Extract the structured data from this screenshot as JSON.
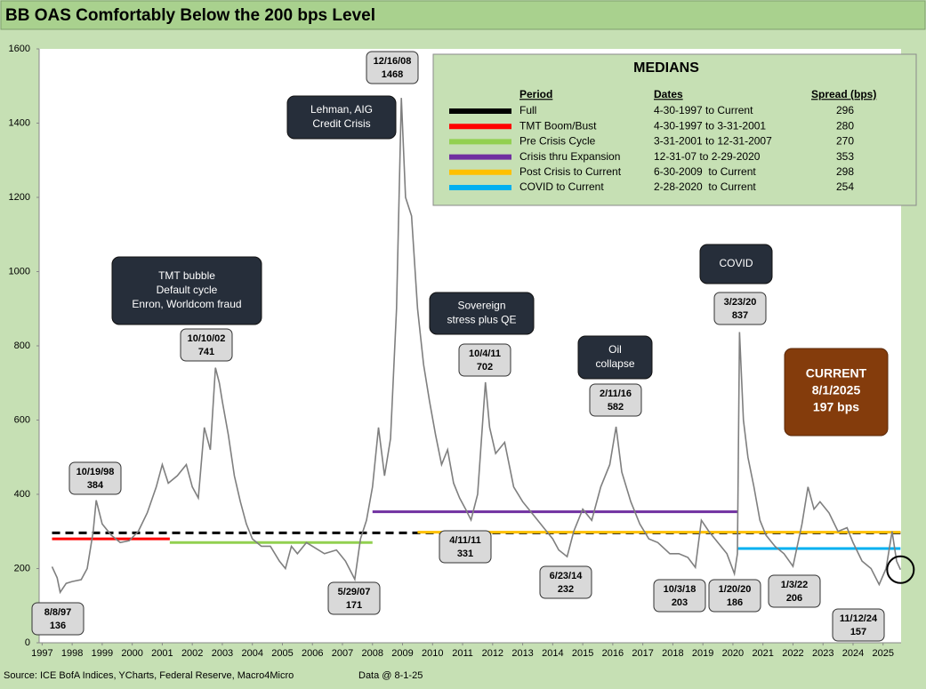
{
  "chart_data": {
    "type": "line",
    "title": "BB OAS Comfortably Below the 200 bps Level",
    "xlim": [
      1996.9,
      2025.6
    ],
    "xticks": [
      1997,
      1998,
      1999,
      2000,
      2001,
      2002,
      2003,
      2004,
      2005,
      2006,
      2007,
      2008,
      2009,
      2010,
      2011,
      2012,
      2013,
      2014,
      2015,
      2016,
      2017,
      2018,
      2019,
      2020,
      2021,
      2022,
      2023,
      2024,
      2025
    ],
    "ylim": [
      0,
      1600
    ],
    "yticks": [
      0,
      200,
      400,
      600,
      800,
      1000,
      1200,
      1400,
      1600
    ],
    "series": [
      {
        "color": "#7f7f7f",
        "x": [
          1997.33,
          1997.5,
          1997.6,
          1997.8,
          1998.0,
          1998.3,
          1998.5,
          1998.7,
          1998.8,
          1999.0,
          1999.3,
          1999.6,
          1999.9,
          2000.2,
          2000.5,
          2000.8,
          2001.0,
          2001.2,
          2001.5,
          2001.8,
          2002.0,
          2002.2,
          2002.4,
          2002.6,
          2002.77,
          2002.9,
          2003.0,
          2003.2,
          2003.4,
          2003.6,
          2003.8,
          2004.0,
          2004.3,
          2004.6,
          2004.9,
          2005.1,
          2005.3,
          2005.5,
          2005.8,
          2006.0,
          2006.4,
          2006.8,
          2007.1,
          2007.41,
          2007.6,
          2007.8,
          2008.0,
          2008.2,
          2008.4,
          2008.6,
          2008.8,
          2008.96,
          2009.1,
          2009.3,
          2009.5,
          2009.7,
          2009.9,
          2010.1,
          2010.3,
          2010.5,
          2010.7,
          2010.9,
          2011.1,
          2011.28,
          2011.5,
          2011.76,
          2011.9,
          2012.1,
          2012.4,
          2012.7,
          2013.0,
          2013.4,
          2013.7,
          2014.0,
          2014.2,
          2014.48,
          2014.7,
          2015.0,
          2015.3,
          2015.6,
          2015.9,
          2016.11,
          2016.3,
          2016.6,
          2016.9,
          2017.2,
          2017.5,
          2017.9,
          2018.2,
          2018.5,
          2018.75,
          2018.95,
          2019.2,
          2019.5,
          2019.8,
          2020.05,
          2020.15,
          2020.22,
          2020.35,
          2020.5,
          2020.7,
          2020.9,
          2021.1,
          2021.4,
          2021.7,
          2022.0,
          2022.3,
          2022.5,
          2022.7,
          2022.9,
          2023.2,
          2023.5,
          2023.8,
          2024.0,
          2024.3,
          2024.6,
          2024.87,
          2025.1,
          2025.3,
          2025.45,
          2025.58
        ],
        "values": [
          205,
          175,
          136,
          160,
          165,
          170,
          200,
          300,
          384,
          320,
          290,
          270,
          275,
          300,
          350,
          420,
          480,
          430,
          450,
          480,
          420,
          390,
          580,
          520,
          741,
          700,
          650,
          560,
          450,
          380,
          320,
          280,
          260,
          260,
          220,
          200,
          260,
          240,
          270,
          260,
          240,
          250,
          220,
          171,
          280,
          330,
          420,
          580,
          450,
          550,
          900,
          1468,
          1200,
          1150,
          900,
          750,
          650,
          560,
          480,
          520,
          430,
          390,
          360,
          331,
          400,
          702,
          580,
          510,
          540,
          420,
          380,
          340,
          310,
          280,
          250,
          232,
          300,
          360,
          330,
          420,
          480,
          582,
          460,
          380,
          320,
          280,
          270,
          240,
          240,
          230,
          203,
          330,
          300,
          270,
          240,
          186,
          240,
          837,
          600,
          500,
          420,
          330,
          290,
          260,
          240,
          206,
          320,
          420,
          360,
          380,
          350,
          300,
          310,
          270,
          220,
          200,
          157,
          200,
          300,
          220,
          197
        ]
      }
    ],
    "callouts": [
      {
        "date": "8/8/97",
        "value": 136
      },
      {
        "date": "10/19/98",
        "value": 384
      },
      {
        "date": "10/10/02",
        "value": 741
      },
      {
        "date": "5/29/07",
        "value": 171
      },
      {
        "date": "12/16/08",
        "value": 1468
      },
      {
        "date": "4/11/11",
        "value": 331
      },
      {
        "date": "10/4/11",
        "value": 702
      },
      {
        "date": "6/23/14",
        "value": 232
      },
      {
        "date": "2/11/16",
        "value": 582
      },
      {
        "date": "10/3/18",
        "value": 203
      },
      {
        "date": "1/20/20",
        "value": 186
      },
      {
        "date": "3/23/20",
        "value": 837
      },
      {
        "date": "1/3/22",
        "value": 206
      },
      {
        "date": "11/12/24",
        "value": 157
      }
    ],
    "notes": [
      [
        "TMT bubble",
        "Default cycle",
        "Enron, Worldcom fraud"
      ],
      [
        "Lehman, AIG",
        "Credit Crisis"
      ],
      [
        "Sovereign",
        "stress plus QE"
      ],
      [
        "Oil",
        "collapse"
      ],
      [
        "COVID"
      ]
    ],
    "current": [
      "CURRENT",
      "8/1/2025",
      "197 bps"
    ],
    "medians": {
      "title": "MEDIANS",
      "headers": [
        "Period",
        "Dates",
        "Spread (bps)"
      ],
      "rows": [
        {
          "period": "Full",
          "dates": "4-30-1997 to Current",
          "spread": 296,
          "color": "#000000",
          "dash": true,
          "x": [
            1997.33,
            2025.58
          ]
        },
        {
          "period": "TMT Boom/Bust",
          "dates": "4-30-1997 to 3-31-2001",
          "spread": 280,
          "color": "#ff0000",
          "x": [
            1997.33,
            2001.25
          ]
        },
        {
          "period": "Pre Crisis Cycle",
          "dates": "3-31-2001 to 12-31-2007",
          "spread": 270,
          "color": "#92d050",
          "x": [
            2001.25,
            2008.0
          ]
        },
        {
          "period": "Crisis thru Expansion",
          "dates": "12-31-07 to 2-29-2020",
          "spread": 353,
          "color": "#7030a0",
          "x": [
            2008.0,
            2020.16
          ]
        },
        {
          "period": "Post Crisis to Current",
          "dates": "6-30-2009  to Current",
          "spread": 298,
          "color": "#ffc000",
          "x": [
            2009.5,
            2025.58
          ]
        },
        {
          "period": "COVID to Current",
          "dates": "2-28-2020  to Current",
          "spread": 254,
          "color": "#00b0f0",
          "x": [
            2020.16,
            2025.58
          ]
        }
      ]
    },
    "source": "Source: ICE BofA Indices, YCharts, Federal Reserve, Macro4Micro",
    "data_date": "Data @ 8-1-25"
  }
}
